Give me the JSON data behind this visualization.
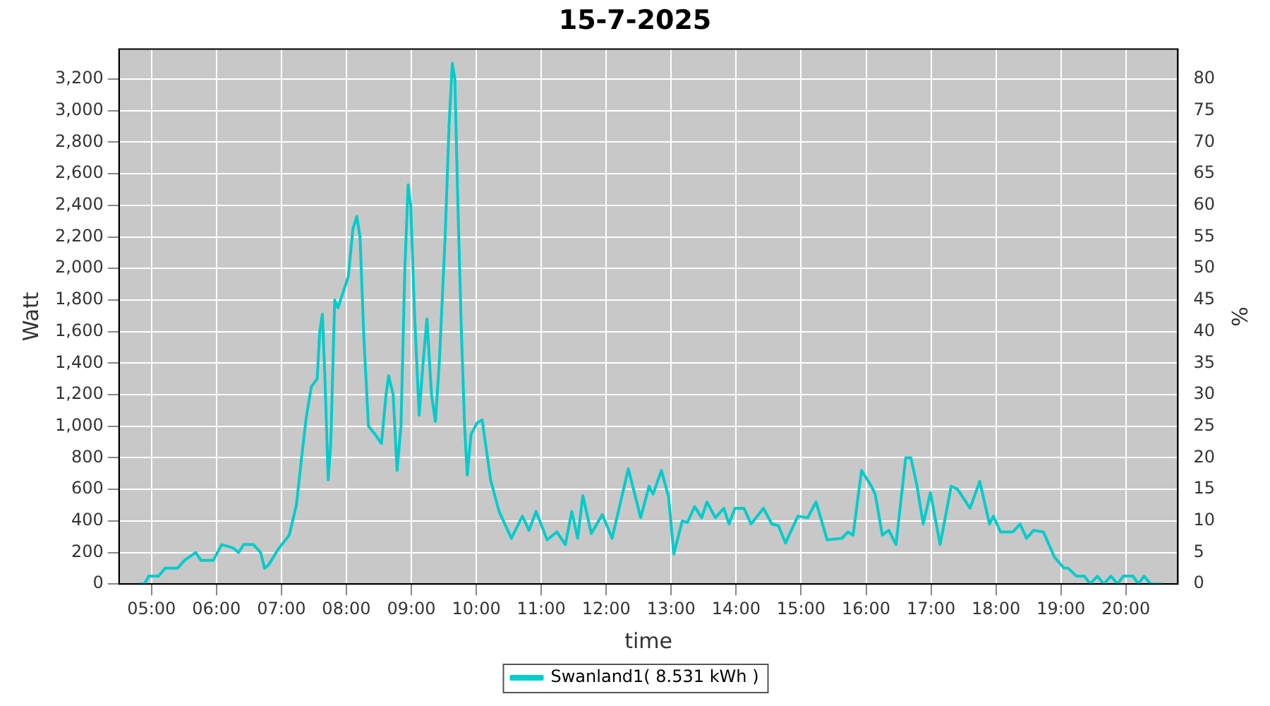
{
  "chart_data": {
    "type": "line",
    "title": "15-7-2025",
    "xlabel": "time",
    "ylabel": "Watt",
    "y2label": "%",
    "xlim": [
      4.5,
      20.8
    ],
    "xticks": [
      {
        "value": 5,
        "label": "05:00"
      },
      {
        "value": 6,
        "label": "06:00"
      },
      {
        "value": 7,
        "label": "07:00"
      },
      {
        "value": 8,
        "label": "08:00"
      },
      {
        "value": 9,
        "label": "09:00"
      },
      {
        "value": 10,
        "label": "10:00"
      },
      {
        "value": 11,
        "label": "11:00"
      },
      {
        "value": 12,
        "label": "12:00"
      },
      {
        "value": 13,
        "label": "13:00"
      },
      {
        "value": 14,
        "label": "14:00"
      },
      {
        "value": 15,
        "label": "15:00"
      },
      {
        "value": 16,
        "label": "16:00"
      },
      {
        "value": 17,
        "label": "17:00"
      },
      {
        "value": 18,
        "label": "18:00"
      },
      {
        "value": 19,
        "label": "19:00"
      },
      {
        "value": 20,
        "label": "20:00"
      }
    ],
    "ylim": [
      0,
      3390
    ],
    "yticks": [
      0,
      200,
      400,
      600,
      800,
      {
        "value": 1000,
        "label": "1,000"
      },
      {
        "value": 1200,
        "label": "1,200"
      },
      {
        "value": 1400,
        "label": "1,400"
      },
      {
        "value": 1600,
        "label": "1,600"
      },
      {
        "value": 1800,
        "label": "1,800"
      },
      {
        "value": 2000,
        "label": "2,000"
      },
      {
        "value": 2200,
        "label": "2,200"
      },
      {
        "value": 2400,
        "label": "2,400"
      },
      {
        "value": 2600,
        "label": "2,600"
      },
      {
        "value": 2800,
        "label": "2,800"
      },
      {
        "value": 3000,
        "label": "3,000"
      },
      {
        "value": 3200,
        "label": "3,200"
      }
    ],
    "y2lim": [
      0,
      84.75
    ],
    "y2ticks": [
      0,
      5,
      10,
      15,
      20,
      25,
      30,
      35,
      40,
      45,
      50,
      55,
      60,
      65,
      70,
      75,
      80
    ],
    "grid": true,
    "legend": "bottom",
    "marker": "none",
    "line_style": "solid",
    "series": [
      {
        "name": "Swanland1( 8.531 kWh )",
        "color": "#00cccc",
        "x": [
          4.79,
          4.89,
          4.96,
          5.11,
          5.21,
          5.4,
          5.51,
          5.68,
          5.76,
          5.95,
          6.08,
          6.25,
          6.34,
          6.42,
          6.57,
          6.68,
          6.74,
          6.8,
          6.95,
          7.12,
          7.23,
          7.31,
          7.38,
          7.46,
          7.55,
          7.59,
          7.63,
          7.67,
          7.72,
          7.76,
          7.82,
          7.87,
          7.95,
          8.03,
          8.1,
          8.16,
          8.21,
          8.27,
          8.34,
          8.44,
          8.54,
          8.61,
          8.65,
          8.72,
          8.78,
          8.84,
          8.9,
          8.95,
          8.99,
          9.05,
          9.12,
          9.18,
          9.24,
          9.31,
          9.37,
          9.43,
          9.52,
          9.58,
          9.63,
          9.67,
          9.71,
          9.77,
          9.82,
          9.86,
          9.92,
          10.01,
          10.09,
          10.22,
          10.35,
          10.54,
          10.71,
          10.81,
          10.92,
          11.09,
          11.24,
          11.37,
          11.47,
          11.56,
          11.64,
          11.77,
          11.94,
          12.09,
          12.34,
          12.53,
          12.66,
          12.72,
          12.85,
          12.96,
          13.04,
          13.17,
          13.25,
          13.36,
          13.47,
          13.55,
          13.68,
          13.81,
          13.89,
          13.98,
          14.12,
          14.23,
          14.42,
          14.55,
          14.65,
          14.76,
          14.95,
          15.1,
          15.23,
          15.4,
          15.63,
          15.72,
          15.8,
          15.93,
          16.08,
          16.14,
          16.25,
          16.35,
          16.46,
          16.61,
          16.69,
          16.78,
          16.88,
          16.99,
          17.14,
          17.31,
          17.41,
          17.6,
          17.75,
          17.9,
          17.96,
          18.07,
          18.26,
          18.37,
          18.47,
          18.58,
          18.73,
          18.9,
          19.05,
          19.11,
          19.24,
          19.36,
          19.45,
          19.56,
          19.66,
          19.77,
          19.87,
          19.96,
          20.11,
          20.19,
          20.28,
          20.38,
          20.57
        ],
        "values": [
          0,
          0,
          50,
          50,
          100,
          100,
          150,
          200,
          150,
          150,
          250,
          230,
          200,
          250,
          250,
          200,
          100,
          120,
          220,
          310,
          500,
          800,
          1050,
          1250,
          1300,
          1600,
          1710,
          1300,
          660,
          900,
          1800,
          1750,
          1850,
          1950,
          2250,
          2330,
          2200,
          1550,
          1000,
          950,
          890,
          1200,
          1320,
          1200,
          720,
          1000,
          2000,
          2530,
          2400,
          1700,
          1070,
          1400,
          1680,
          1200,
          1030,
          1400,
          2200,
          2900,
          3300,
          3200,
          2500,
          1600,
          1000,
          690,
          950,
          1020,
          1040,
          660,
          460,
          290,
          430,
          340,
          460,
          280,
          330,
          250,
          460,
          290,
          560,
          320,
          440,
          290,
          730,
          420,
          620,
          570,
          720,
          550,
          190,
          400,
          390,
          490,
          420,
          520,
          420,
          480,
          380,
          480,
          480,
          380,
          480,
          380,
          370,
          260,
          430,
          420,
          520,
          280,
          290,
          330,
          310,
          720,
          620,
          570,
          310,
          340,
          250,
          800,
          800,
          630,
          380,
          580,
          250,
          620,
          600,
          480,
          650,
          380,
          430,
          330,
          330,
          380,
          290,
          340,
          330,
          170,
          100,
          100,
          50,
          50,
          0,
          50,
          0,
          50,
          0,
          50,
          50,
          0,
          50,
          0,
          0
        ]
      }
    ]
  }
}
